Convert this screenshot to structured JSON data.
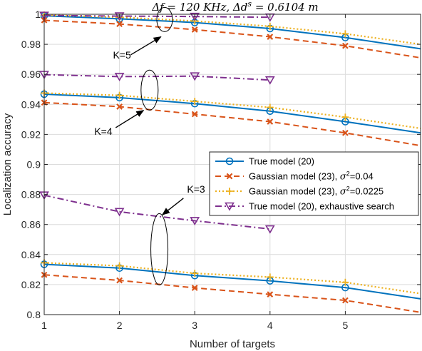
{
  "chart_data": {
    "type": "line",
    "title": "Δf = 120 KHz, Δd^s = 0.6104 m",
    "xlabel": "Number of targets",
    "ylabel": "Localization accuracy",
    "xlim": [
      1,
      6
    ],
    "ylim": [
      0.8,
      1.0
    ],
    "xticks": [
      1,
      2,
      3,
      4,
      5
    ],
    "yticks": [
      "0.8",
      "0.82",
      "0.84",
      "0.86",
      "0.88",
      "0.9",
      "0.92",
      "0.94",
      "0.96",
      "0.98",
      "1"
    ],
    "grid": true,
    "legend_position": "center-right",
    "series": [
      {
        "name": "True model (20)",
        "color": "#0072BD",
        "group": "K=3",
        "x": [
          1,
          2,
          3,
          4,
          5,
          6
        ],
        "y": [
          0.8335,
          0.831,
          0.826,
          0.8225,
          0.818,
          0.8105
        ],
        "markers": [
          true,
          true,
          true,
          true,
          true,
          false
        ]
      },
      {
        "name": "Gaussian model (23), σ²=0.04",
        "color": "#D95319",
        "group": "K=3",
        "x": [
          1,
          2,
          3,
          4,
          5,
          6
        ],
        "y": [
          0.8265,
          0.8228,
          0.8178,
          0.8135,
          0.8095,
          0.8015
        ],
        "markers": [
          true,
          true,
          true,
          true,
          true,
          false
        ]
      },
      {
        "name": "Gaussian model (23), σ²=0.0225",
        "color": "#EDB120",
        "group": "K=3",
        "x": [
          1,
          2,
          3,
          4,
          5,
          6
        ],
        "y": [
          0.8345,
          0.8325,
          0.8275,
          0.825,
          0.8215,
          0.814
        ],
        "markers": [
          true,
          true,
          true,
          true,
          true,
          false
        ]
      },
      {
        "name": "True model (20), exhaustive search",
        "color": "#7E2F8E",
        "group": "K=3",
        "x": [
          1,
          2,
          3,
          4
        ],
        "y": [
          0.8795,
          0.8685,
          0.8625,
          0.857
        ],
        "markers": [
          true,
          true,
          true,
          true
        ]
      },
      {
        "name": "True model (20)",
        "color": "#0072BD",
        "group": "K=4",
        "x": [
          1,
          2,
          3,
          4,
          5,
          6
        ],
        "y": [
          0.9468,
          0.9445,
          0.9405,
          0.9355,
          0.9285,
          0.921
        ],
        "markers": [
          true,
          true,
          true,
          true,
          true,
          false
        ]
      },
      {
        "name": "Gaussian model (23), σ²=0.04",
        "color": "#D95319",
        "group": "K=4",
        "x": [
          1,
          2,
          3,
          4,
          5,
          6
        ],
        "y": [
          0.9412,
          0.9385,
          0.9335,
          0.9285,
          0.921,
          0.9125
        ],
        "markers": [
          true,
          true,
          true,
          true,
          true,
          false
        ]
      },
      {
        "name": "Gaussian model (23), σ²=0.0225",
        "color": "#EDB120",
        "group": "K=4",
        "x": [
          1,
          2,
          3,
          4,
          5,
          6
        ],
        "y": [
          0.9475,
          0.946,
          0.942,
          0.938,
          0.9315,
          0.924
        ],
        "markers": [
          true,
          true,
          true,
          true,
          true,
          false
        ]
      },
      {
        "name": "True model (20), exhaustive search",
        "color": "#7E2F8E",
        "group": "K=4",
        "x": [
          1,
          2,
          3,
          4
        ],
        "y": [
          0.9598,
          0.9585,
          0.9588,
          0.9562
        ],
        "markers": [
          true,
          true,
          true,
          true
        ]
      },
      {
        "name": "True model (20)",
        "color": "#0072BD",
        "group": "K=5",
        "x": [
          1,
          2,
          3,
          4,
          5,
          6
        ],
        "y": [
          0.999,
          0.997,
          0.9945,
          0.9905,
          0.9845,
          0.977
        ],
        "markers": [
          true,
          true,
          true,
          true,
          true,
          false
        ]
      },
      {
        "name": "Gaussian model (23), σ²=0.04",
        "color": "#D95319",
        "group": "K=5",
        "x": [
          1,
          2,
          3,
          4,
          5,
          6
        ],
        "y": [
          0.996,
          0.9935,
          0.9898,
          0.985,
          0.979,
          0.971
        ],
        "markers": [
          true,
          true,
          true,
          true,
          true,
          false
        ]
      },
      {
        "name": "Gaussian model (23), σ²=0.0225",
        "color": "#EDB120",
        "group": "K=5",
        "x": [
          1,
          2,
          3,
          4,
          5,
          6
        ],
        "y": [
          0.9995,
          0.998,
          0.9955,
          0.992,
          0.987,
          0.98
        ],
        "markers": [
          true,
          true,
          true,
          true,
          true,
          false
        ]
      },
      {
        "name": "True model (20), exhaustive search",
        "color": "#7E2F8E",
        "group": "K=5",
        "x": [
          1,
          2,
          3,
          4
        ],
        "y": [
          0.9992,
          0.9988,
          0.9985,
          0.998
        ],
        "markers": [
          true,
          true,
          true,
          true
        ]
      }
    ],
    "legend": [
      {
        "label": "True model (20)",
        "color": "#0072BD",
        "style": "solid",
        "marker": "circle"
      },
      {
        "label": "Gaussian model (23), σ²=0.04",
        "color": "#D95319",
        "style": "dashed",
        "marker": "x"
      },
      {
        "label": "Gaussian model (23), σ²=0.0225",
        "color": "#EDB120",
        "style": "dotted",
        "marker": "plus"
      },
      {
        "label": "True model (20), exhaustive search",
        "color": "#7E2F8E",
        "style": "dashdot",
        "marker": "triangle-down"
      }
    ],
    "annotations": [
      {
        "text": "K=5",
        "ellipse_x": 2.6,
        "ellipse_y": 0.9965,
        "arrow_to_x": 2.55,
        "arrow_to_y": 0.985,
        "arrow_from_x": 2.15,
        "arrow_from_y": 0.973
      },
      {
        "text": "K=4",
        "ellipse_x": 2.4,
        "ellipse_y": 0.9495,
        "arrow_to_x": 2.32,
        "arrow_to_y": 0.936,
        "arrow_from_x": 1.95,
        "arrow_from_y": 0.9245
      },
      {
        "text": "K=3",
        "ellipse_x": 2.53,
        "ellipse_y": 0.8435,
        "arrow_to_x": 2.57,
        "arrow_to_y": 0.8665,
        "arrow_from_x": 2.85,
        "arrow_from_y": 0.8775
      }
    ]
  }
}
